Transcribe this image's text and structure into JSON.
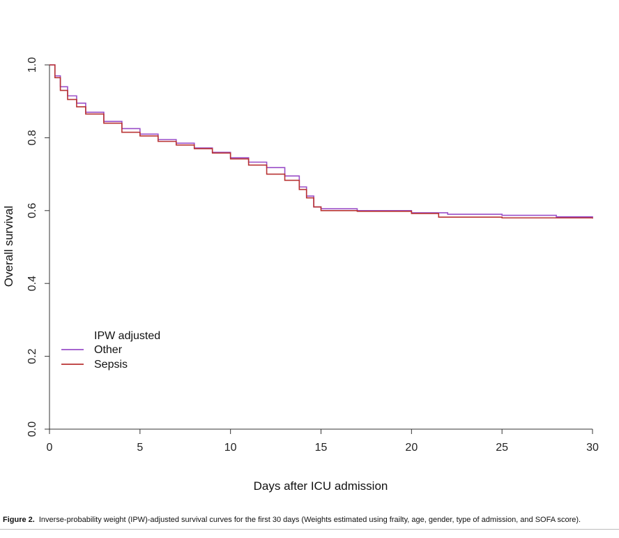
{
  "chart_data": {
    "type": "line",
    "xlabel": "Days after ICU admission",
    "ylabel": "Overall survival",
    "xlim": [
      0,
      30
    ],
    "ylim": [
      0,
      1
    ],
    "xticks": [
      "0",
      "5",
      "10",
      "15",
      "20",
      "25",
      "30"
    ],
    "yticks": [
      "0.0",
      "0.2",
      "0.4",
      "0.6",
      "0.8",
      "1.0"
    ],
    "grid": false,
    "legend": {
      "title": "IPW adjusted",
      "placement": "bottom-left"
    },
    "series": [
      {
        "name": "Other",
        "color": "#9a4fc8",
        "points": [
          [
            0,
            1.0
          ],
          [
            0.3,
            0.97
          ],
          [
            0.6,
            0.94
          ],
          [
            1.0,
            0.915
          ],
          [
            1.5,
            0.895
          ],
          [
            2.0,
            0.87
          ],
          [
            3.0,
            0.845
          ],
          [
            4.0,
            0.825
          ],
          [
            5.0,
            0.81
          ],
          [
            6.0,
            0.795
          ],
          [
            7.0,
            0.785
          ],
          [
            8.0,
            0.772
          ],
          [
            9.0,
            0.76
          ],
          [
            10.0,
            0.745
          ],
          [
            11.0,
            0.733
          ],
          [
            12.0,
            0.718
          ],
          [
            13.0,
            0.695
          ],
          [
            13.8,
            0.665
          ],
          [
            14.2,
            0.64
          ],
          [
            14.6,
            0.61
          ],
          [
            15.0,
            0.605
          ],
          [
            17.0,
            0.6
          ],
          [
            20.0,
            0.594
          ],
          [
            22.0,
            0.59
          ],
          [
            25.0,
            0.587
          ],
          [
            28.0,
            0.583
          ],
          [
            30.0,
            0.58
          ]
        ]
      },
      {
        "name": "Sepsis",
        "color": "#b83232",
        "points": [
          [
            0,
            1.0
          ],
          [
            0.3,
            0.965
          ],
          [
            0.6,
            0.93
          ],
          [
            1.0,
            0.905
          ],
          [
            1.5,
            0.885
          ],
          [
            2.0,
            0.865
          ],
          [
            3.0,
            0.84
          ],
          [
            4.0,
            0.815
          ],
          [
            5.0,
            0.805
          ],
          [
            6.0,
            0.79
          ],
          [
            7.0,
            0.78
          ],
          [
            8.0,
            0.77
          ],
          [
            9.0,
            0.758
          ],
          [
            10.0,
            0.742
          ],
          [
            11.0,
            0.725
          ],
          [
            12.0,
            0.7
          ],
          [
            13.0,
            0.683
          ],
          [
            13.8,
            0.658
          ],
          [
            14.2,
            0.635
          ],
          [
            14.6,
            0.61
          ],
          [
            15.0,
            0.6
          ],
          [
            17.0,
            0.598
          ],
          [
            20.0,
            0.592
          ],
          [
            21.5,
            0.582
          ],
          [
            25.0,
            0.58
          ],
          [
            28.0,
            0.58
          ],
          [
            30.0,
            0.578
          ]
        ]
      }
    ]
  },
  "caption": {
    "label": "Figure 2.",
    "text": "Inverse-probability weight (IPW)-adjusted survival curves for the first 30 days (Weights estimated using frailty, age, gender, type of admission, and SOFA score)."
  }
}
